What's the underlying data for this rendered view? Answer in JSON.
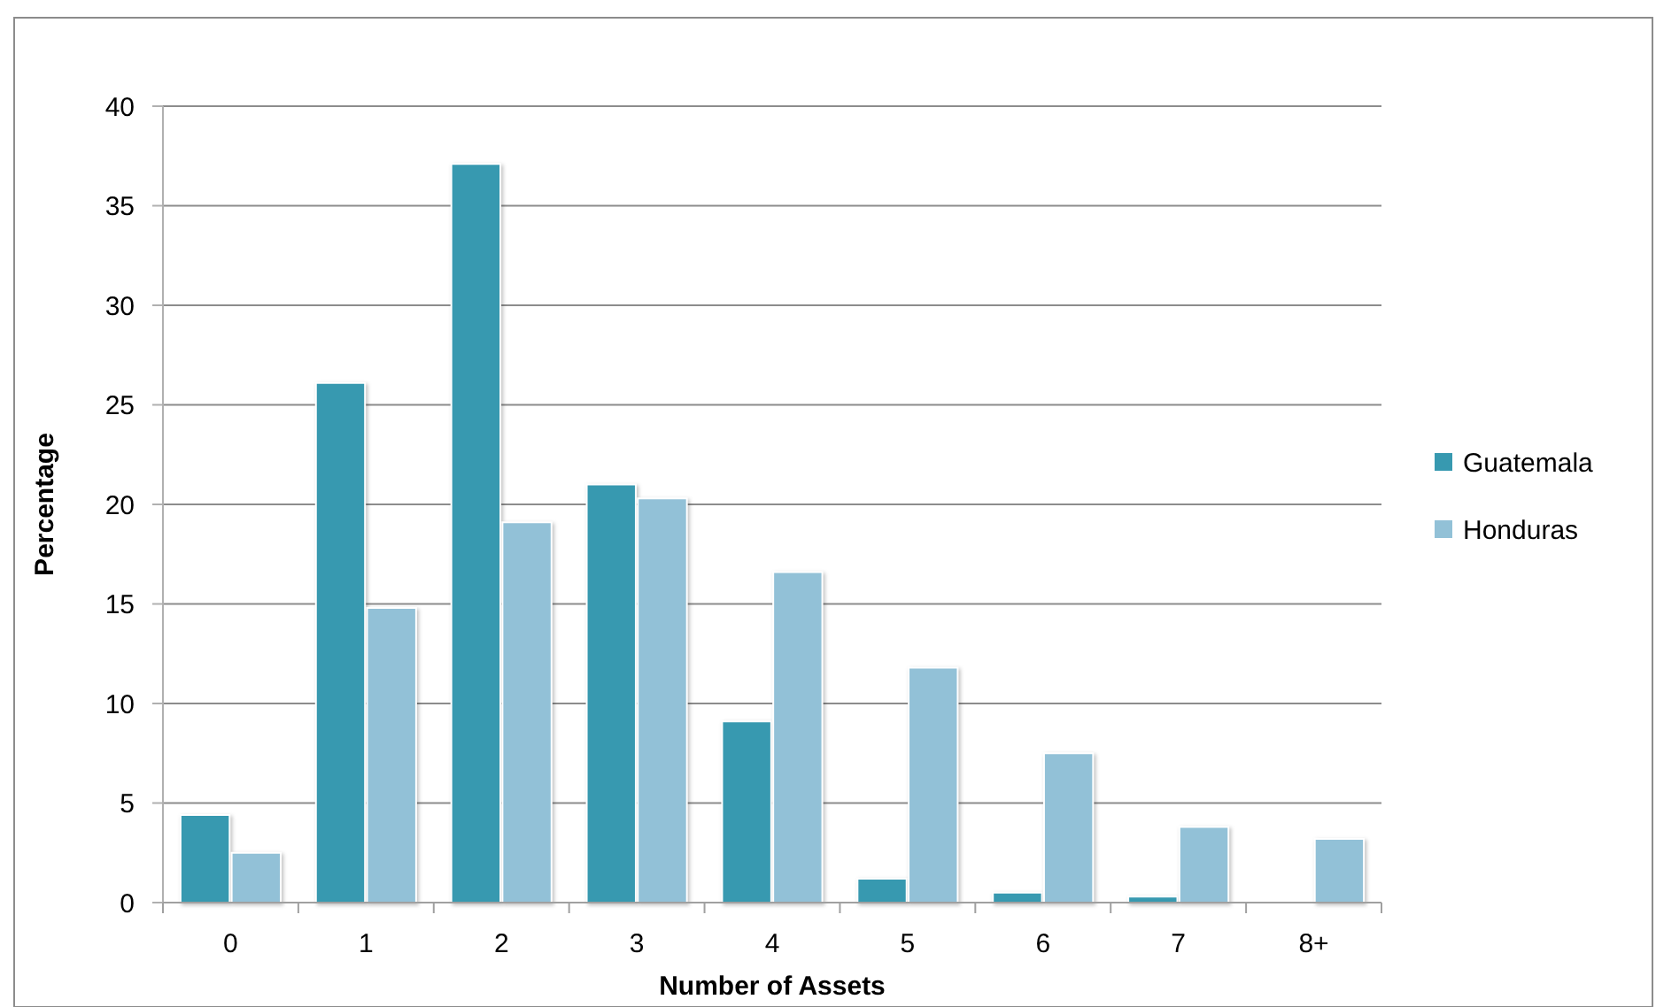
{
  "chart_data": {
    "type": "bar",
    "xlabel": "Number of Assets",
    "ylabel": "Percentage",
    "categories": [
      "0",
      "1",
      "2",
      "3",
      "4",
      "5",
      "6",
      "7",
      "8+"
    ],
    "series": [
      {
        "name": "Guatemala",
        "color": "#3799b0",
        "values": [
          4.4,
          26.1,
          37.1,
          21.0,
          9.1,
          1.2,
          0.5,
          0.3,
          null
        ]
      },
      {
        "name": "Honduras",
        "color": "#92c1d7",
        "values": [
          2.5,
          14.8,
          19.1,
          20.3,
          16.6,
          11.8,
          7.5,
          3.8,
          3.2
        ]
      }
    ],
    "ylim": [
      0,
      40
    ],
    "yticks": [
      0,
      5,
      10,
      15,
      20,
      25,
      30,
      35,
      40
    ],
    "grid": "y",
    "legend": "right"
  }
}
